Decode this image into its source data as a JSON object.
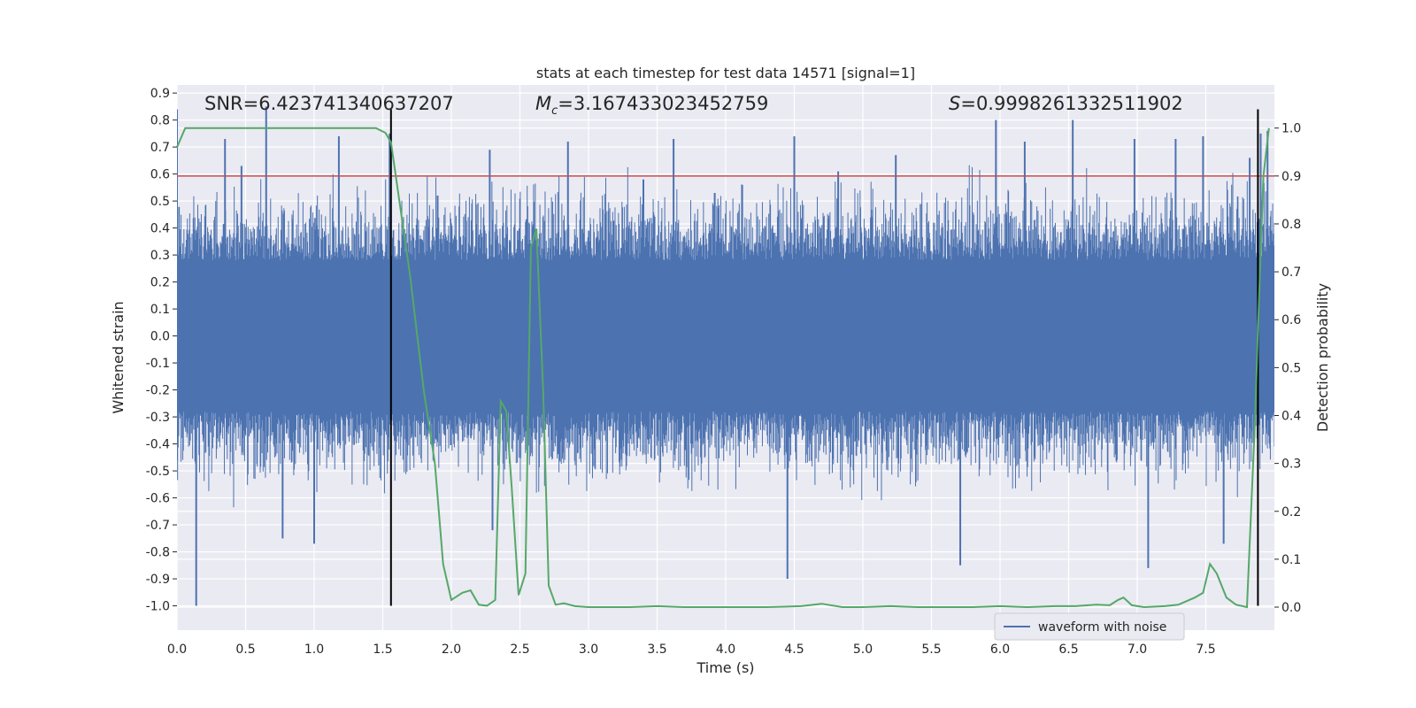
{
  "chart_data": {
    "type": "line",
    "title": "stats at each timestep for test data 14571 [signal=1]",
    "xlabel": "Time (s)",
    "ylabel": "Whitened strain",
    "y2label": "Detection probability",
    "xlim": [
      0.0,
      8.0
    ],
    "ylim": [
      -1.09,
      0.93
    ],
    "y2lim": [
      -0.048,
      1.09
    ],
    "xticks": [
      0.0,
      0.5,
      1.0,
      1.5,
      2.0,
      2.5,
      3.0,
      3.5,
      4.0,
      4.5,
      5.0,
      5.5,
      6.0,
      6.5,
      7.0,
      7.5
    ],
    "yticks": [
      0.9,
      0.8,
      0.7,
      0.6,
      0.5,
      0.4,
      0.3,
      0.2,
      0.1,
      0.0,
      -0.1,
      -0.2,
      -0.3,
      -0.4,
      -0.5,
      -0.6,
      -0.7,
      -0.8,
      -0.9,
      -1.0
    ],
    "y2ticks": [
      1.0,
      0.9,
      0.8,
      0.7,
      0.6,
      0.5,
      0.4,
      0.3,
      0.2,
      0.1,
      0.0
    ],
    "annotations": {
      "snr": "SNR=6.423741340637207",
      "mc_symbol": "M",
      "mc_sub": "c",
      "mc_value": "=3.167433023452759",
      "s_symbol": "S",
      "s_value": "=0.9998261332511902"
    },
    "threshold_line": {
      "value": 0.9,
      "axis": "y2",
      "color": "#c44e52"
    },
    "vertical_lines": [
      1.56,
      7.88
    ],
    "vertical_line_range": [
      -1.0,
      0.84
    ],
    "waveform": {
      "name": "waveform with noise",
      "color": "#4c72b0",
      "band_low": -0.28,
      "band_high": 0.28,
      "peaks": [
        [
          0.0,
          0.84
        ],
        [
          0.14,
          -1.0
        ],
        [
          0.35,
          0.73
        ],
        [
          0.47,
          0.63
        ],
        [
          0.65,
          0.85
        ],
        [
          0.77,
          -0.75
        ],
        [
          1.0,
          -0.77
        ],
        [
          1.18,
          0.74
        ],
        [
          1.55,
          0.75
        ],
        [
          1.9,
          0.52
        ],
        [
          2.28,
          0.69
        ],
        [
          2.3,
          -0.72
        ],
        [
          2.85,
          0.72
        ],
        [
          3.4,
          0.58
        ],
        [
          3.62,
          0.73
        ],
        [
          3.92,
          0.53
        ],
        [
          4.12,
          0.56
        ],
        [
          4.45,
          -0.9
        ],
        [
          4.5,
          0.74
        ],
        [
          4.82,
          0.61
        ],
        [
          5.24,
          0.67
        ],
        [
          5.71,
          -0.85
        ],
        [
          5.97,
          0.8
        ],
        [
          6.18,
          0.72
        ],
        [
          6.53,
          0.8
        ],
        [
          6.98,
          0.73
        ],
        [
          7.08,
          -0.86
        ],
        [
          7.28,
          0.73
        ],
        [
          7.48,
          0.74
        ],
        [
          7.63,
          -0.77
        ],
        [
          7.82,
          0.66
        ],
        [
          7.9,
          0.75
        ],
        [
          7.95,
          0.76
        ]
      ]
    },
    "series": [
      {
        "name": "detection probability",
        "axis": "y2",
        "color": "#55a868",
        "x": [
          0.0,
          0.06,
          0.3,
          0.6,
          0.9,
          1.2,
          1.45,
          1.52,
          1.56,
          1.62,
          1.7,
          1.8,
          1.88,
          1.94,
          2.0,
          2.08,
          2.14,
          2.2,
          2.26,
          2.32,
          2.36,
          2.4,
          2.44,
          2.49,
          2.54,
          2.58,
          2.62,
          2.67,
          2.71,
          2.76,
          2.82,
          2.9,
          3.0,
          3.3,
          3.5,
          3.7,
          4.0,
          4.3,
          4.55,
          4.7,
          4.85,
          5.0,
          5.2,
          5.4,
          5.6,
          5.8,
          6.0,
          6.2,
          6.4,
          6.55,
          6.7,
          6.8,
          6.86,
          6.9,
          6.96,
          7.05,
          7.2,
          7.3,
          7.42,
          7.48,
          7.53,
          7.58,
          7.65,
          7.72,
          7.8,
          7.86,
          7.88,
          7.92,
          7.96
        ],
        "y": [
          0.96,
          1.0,
          1.0,
          1.0,
          1.0,
          1.0,
          1.0,
          0.99,
          0.97,
          0.85,
          0.69,
          0.45,
          0.3,
          0.09,
          0.015,
          0.03,
          0.035,
          0.005,
          0.003,
          0.015,
          0.43,
          0.41,
          0.25,
          0.025,
          0.07,
          0.75,
          0.79,
          0.45,
          0.045,
          0.005,
          0.008,
          0.002,
          0.0,
          0.0,
          0.002,
          0.0,
          0.0,
          0.0,
          0.002,
          0.007,
          0.0,
          0.0,
          0.002,
          0.0,
          0.0,
          0.0,
          0.002,
          0.0,
          0.002,
          0.002,
          0.005,
          0.004,
          0.015,
          0.02,
          0.004,
          0.0,
          0.002,
          0.005,
          0.02,
          0.03,
          0.09,
          0.07,
          0.02,
          0.005,
          0.0,
          0.4,
          0.58,
          0.9,
          1.0
        ]
      }
    ],
    "legend": {
      "location": "bottom-right",
      "entries": [
        "waveform with noise"
      ]
    }
  }
}
